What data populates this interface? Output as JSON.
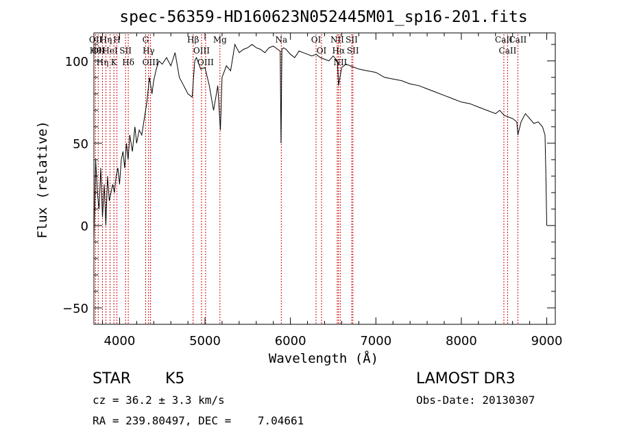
{
  "chart_data": {
    "type": "line",
    "title": "spec-56359-HD160623N052445M01_sp16-201.fits",
    "xlabel": "Wavelength (Å)",
    "ylabel": "Flux (relative)",
    "xlim": [
      3700,
      9100
    ],
    "ylim": [
      -60,
      117
    ],
    "x_ticks": [
      4000,
      5000,
      6000,
      7000,
      8000,
      9000
    ],
    "x_tick_labels": [
      "4000",
      "5000",
      "6000",
      "7000",
      "8000",
      "9000"
    ],
    "y_ticks": [
      -50,
      0,
      50,
      100
    ],
    "y_tick_labels": [
      "−50",
      "0",
      "50",
      "100"
    ],
    "grid": false,
    "line_color": "#000000",
    "marker_color": "#cc0000",
    "series": [
      {
        "name": "flux",
        "x": [
          3700,
          3720,
          3740,
          3760,
          3780,
          3800,
          3820,
          3840,
          3860,
          3880,
          3900,
          3920,
          3940,
          3960,
          3980,
          4000,
          4020,
          4040,
          4060,
          4080,
          4100,
          4120,
          4150,
          4180,
          4200,
          4230,
          4260,
          4290,
          4320,
          4350,
          4380,
          4400,
          4430,
          4460,
          4500,
          4550,
          4600,
          4650,
          4700,
          4750,
          4800,
          4850,
          4880,
          4900,
          4950,
          5000,
          5050,
          5100,
          5150,
          5180,
          5200,
          5250,
          5300,
          5350,
          5400,
          5450,
          5500,
          5550,
          5600,
          5650,
          5700,
          5750,
          5800,
          5850,
          5880,
          5890,
          5895,
          5900,
          5920,
          5950,
          6000,
          6050,
          6100,
          6150,
          6200,
          6250,
          6300,
          6350,
          6400,
          6450,
          6500,
          6550,
          6563,
          6600,
          6650,
          6700,
          6750,
          6800,
          6900,
          7000,
          7100,
          7200,
          7300,
          7400,
          7500,
          7600,
          7700,
          7800,
          7900,
          8000,
          8100,
          8200,
          8300,
          8400,
          8450,
          8500,
          8550,
          8600,
          8650,
          8662,
          8700,
          8750,
          8800,
          8850,
          8900,
          8950,
          8980,
          8990,
          9000
        ],
        "y": [
          -10,
          40,
          20,
          10,
          35,
          5,
          25,
          0,
          30,
          15,
          20,
          25,
          20,
          30,
          35,
          25,
          40,
          45,
          35,
          50,
          40,
          55,
          45,
          60,
          50,
          58,
          55,
          65,
          75,
          90,
          80,
          88,
          95,
          100,
          98,
          102,
          97,
          105,
          90,
          85,
          80,
          78,
          100,
          102,
          95,
          96,
          85,
          70,
          85,
          58,
          90,
          97,
          94,
          110,
          105,
          107,
          108,
          110,
          108,
          107,
          105,
          108,
          109,
          107,
          106,
          50,
          80,
          107,
          108,
          107,
          104,
          102,
          106,
          105,
          104,
          103,
          104,
          102,
          101,
          100,
          103,
          100,
          85,
          96,
          98,
          97,
          96,
          95,
          94,
          93,
          90,
          89,
          88,
          86,
          85,
          83,
          81,
          79,
          77,
          75,
          74,
          72,
          70,
          68,
          70,
          67,
          66,
          65,
          63,
          55,
          63,
          68,
          65,
          62,
          63,
          60,
          55,
          30,
          0
        ]
      }
    ],
    "line_markers": [
      {
        "x": 3720,
        "labels": [
          "OII",
          "Hθ"
        ]
      },
      {
        "x": 3750,
        "labels": [
          "OII"
        ]
      },
      {
        "x": 3800,
        "labels": [
          "Hη"
        ]
      },
      {
        "x": 3840,
        "labels": [
          "Hη"
        ]
      },
      {
        "x": 3889,
        "labels": [
          "HeI"
        ]
      },
      {
        "x": 3934,
        "labels": [
          "K"
        ]
      },
      {
        "x": 3969,
        "labels": [
          "H"
        ]
      },
      {
        "x": 4070,
        "labels": [
          "SII"
        ]
      },
      {
        "x": 4102,
        "labels": [
          "Hδ"
        ]
      },
      {
        "x": 4305,
        "labels": [
          "G"
        ]
      },
      {
        "x": 4340,
        "labels": [
          "Hγ"
        ]
      },
      {
        "x": 4363,
        "labels": [
          "OIII"
        ]
      },
      {
        "x": 4861,
        "labels": [
          "Hβ"
        ]
      },
      {
        "x": 4959,
        "labels": [
          "OIII"
        ]
      },
      {
        "x": 5007,
        "labels": [
          "OIII"
        ]
      },
      {
        "x": 5175,
        "labels": [
          "Mg"
        ]
      },
      {
        "x": 5893,
        "labels": [
          "Na"
        ]
      },
      {
        "x": 6300,
        "labels": [
          "OI"
        ]
      },
      {
        "x": 6364,
        "labels": [
          "OI"
        ]
      },
      {
        "x": 6548,
        "labels": [
          "NII"
        ]
      },
      {
        "x": 6563,
        "labels": [
          "Hα"
        ]
      },
      {
        "x": 6583,
        "labels": [
          "NII"
        ]
      },
      {
        "x": 6717,
        "labels": [
          "SII"
        ]
      },
      {
        "x": 6731,
        "labels": [
          "SII"
        ]
      },
      {
        "x": 8498,
        "labels": [
          "CaII"
        ]
      },
      {
        "x": 8542,
        "labels": [
          "CaII"
        ]
      },
      {
        "x": 8662,
        "labels": [
          "CaII"
        ]
      }
    ]
  },
  "info": {
    "object_class": "STAR",
    "subclass": "K5",
    "survey": "LAMOST DR3",
    "redshift": "cz = 36.2 ± 3.3 km/s",
    "obs_date": "Obs-Date: 20130307",
    "coords": "RA = 239.80497, DEC =    7.04661"
  }
}
